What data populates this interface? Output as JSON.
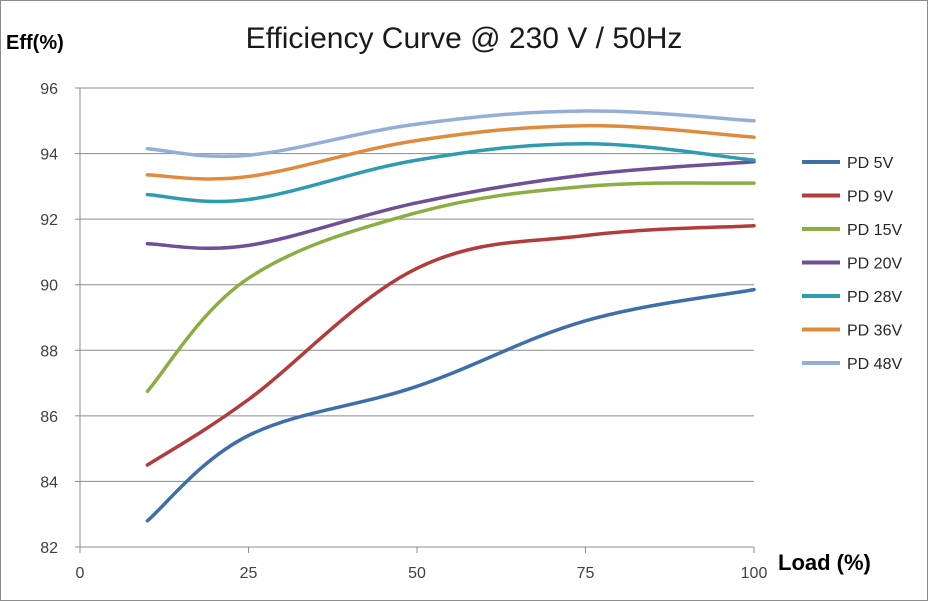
{
  "chart_data": {
    "type": "line",
    "title": "Efficiency Curve @ 230 V / 50Hz",
    "ylabel": "Eff(%)",
    "xlabel": "Load (%)",
    "xlim": [
      0,
      100
    ],
    "ylim": [
      82,
      96
    ],
    "x_ticks": [
      0,
      25,
      50,
      75,
      100
    ],
    "y_ticks": [
      82,
      84,
      86,
      88,
      90,
      92,
      94,
      96
    ],
    "grid": "horizontal",
    "legend_position": "right",
    "x": [
      10,
      25,
      50,
      75,
      100
    ],
    "series": [
      {
        "name": "PD 5V",
        "color": "#3f6fa8",
        "values": [
          82.8,
          85.4,
          86.9,
          88.9,
          89.85
        ]
      },
      {
        "name": "PD 9V",
        "color": "#b23c3a",
        "values": [
          84.5,
          86.5,
          90.5,
          91.5,
          91.8
        ]
      },
      {
        "name": "PD 15V",
        "color": "#8aad44",
        "values": [
          86.75,
          90.2,
          92.2,
          93.0,
          93.1
        ]
      },
      {
        "name": "PD 20V",
        "color": "#6f4f96",
        "values": [
          91.25,
          91.2,
          92.5,
          93.35,
          93.75
        ]
      },
      {
        "name": "PD 28V",
        "color": "#2f9bb0",
        "values": [
          92.75,
          92.6,
          93.8,
          94.3,
          93.8
        ]
      },
      {
        "name": "PD 36V",
        "color": "#e08a3c",
        "values": [
          93.35,
          93.3,
          94.4,
          94.85,
          94.5
        ]
      },
      {
        "name": "PD 48V",
        "color": "#95aed6",
        "values": [
          94.15,
          93.95,
          94.9,
          95.3,
          95.0
        ]
      }
    ]
  }
}
